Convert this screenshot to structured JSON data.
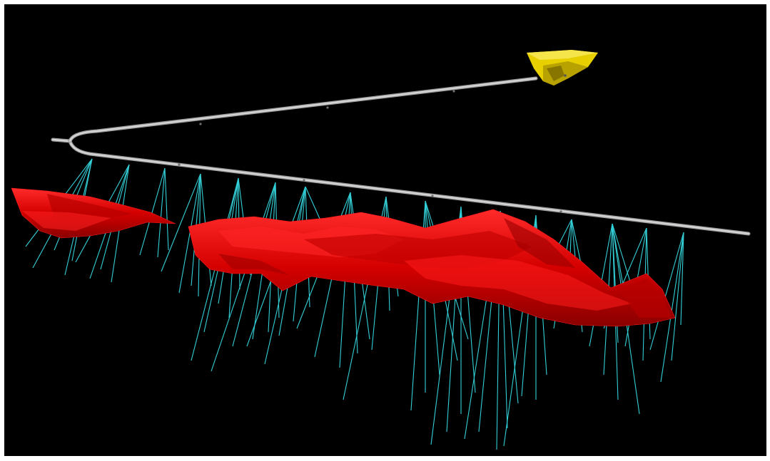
{
  "scene": {
    "background": "#000000",
    "colors": {
      "drillhole": "#33cfd6",
      "orebody": "#e00000",
      "orebody_dark": "#8a0000",
      "orebody_light": "#ff1a1a",
      "tunnel": "#c8c8c8",
      "portal": "#e8d000",
      "portal_shade": "#a89400"
    },
    "objects": [
      "underground-tunnel",
      "drill-holes",
      "orebody-left",
      "orebody-main",
      "portal"
    ]
  }
}
